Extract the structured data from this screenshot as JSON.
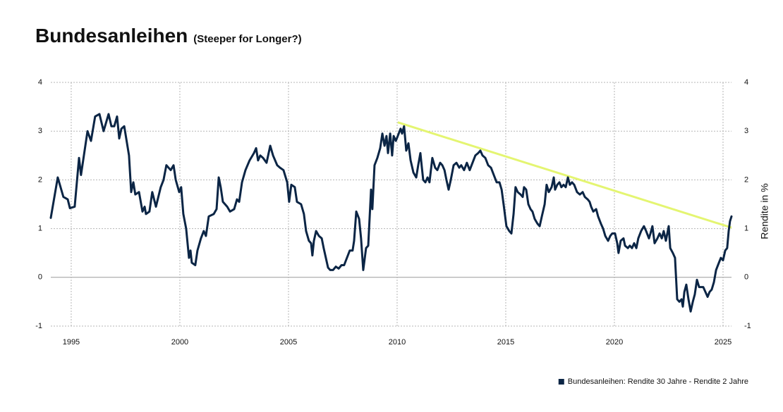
{
  "chart_data": {
    "type": "line",
    "title": "Bundesanleihen",
    "subtitle": "(Steeper for Longer?)",
    "y2label": "Rendite in %",
    "xlim": [
      1994.06,
      2025.39
    ],
    "xticks": [
      1995,
      2000,
      2005,
      2010,
      2015,
      2020,
      2025
    ],
    "ylim": [
      -1,
      4
    ],
    "yticks": [
      -1,
      0,
      1,
      2,
      3,
      4
    ],
    "y2lim": [
      -1,
      4
    ],
    "y2ticks": [
      -1,
      0,
      1,
      2,
      3,
      4
    ],
    "grid": true,
    "zero_line": true,
    "legend": "bottom-right",
    "series": [
      {
        "name": "Bundesanleihen: Rendite 30 Jahre - Rendite 2 Jahre",
        "color": "#0b2545",
        "x": [
          1994.06,
          1994.38,
          1994.64,
          1994.84,
          1994.94,
          1995.16,
          1995.36,
          1995.45,
          1995.55,
          1995.75,
          1995.91,
          1996.1,
          1996.3,
          1996.49,
          1996.72,
          1996.85,
          1996.98,
          1997.11,
          1997.21,
          1997.31,
          1997.44,
          1997.66,
          1997.76,
          1997.86,
          1997.95,
          1998.12,
          1998.28,
          1998.38,
          1998.44,
          1998.6,
          1998.73,
          1998.9,
          1999.12,
          1999.25,
          1999.38,
          1999.58,
          1999.71,
          1999.81,
          1999.97,
          2000.06,
          2000.16,
          2000.29,
          2000.42,
          2000.49,
          2000.55,
          2000.71,
          2000.81,
          2000.97,
          2001.1,
          2001.2,
          2001.33,
          2001.56,
          2001.69,
          2001.79,
          2001.88,
          2001.98,
          2002.18,
          2002.31,
          2002.5,
          2002.63,
          2002.73,
          2002.86,
          2003.02,
          2003.21,
          2003.41,
          2003.51,
          2003.6,
          2003.7,
          2003.83,
          2003.99,
          2004.16,
          2004.29,
          2004.48,
          2004.61,
          2004.77,
          2004.94,
          2005.03,
          2005.13,
          2005.29,
          2005.39,
          2005.58,
          2005.71,
          2005.81,
          2005.94,
          2006.04,
          2006.1,
          2006.17,
          2006.27,
          2006.4,
          2006.53,
          2006.62,
          2006.72,
          2006.82,
          2006.92,
          2007.05,
          2007.18,
          2007.31,
          2007.44,
          2007.56,
          2007.69,
          2007.82,
          2007.95,
          2008.02,
          2008.12,
          2008.25,
          2008.34,
          2008.44,
          2008.57,
          2008.67,
          2008.8,
          2008.86,
          2008.96,
          2009.09,
          2009.22,
          2009.32,
          2009.42,
          2009.51,
          2009.58,
          2009.68,
          2009.77,
          2009.84,
          2009.94,
          2010.03,
          2010.16,
          2010.23,
          2010.32,
          2010.42,
          2010.52,
          2010.62,
          2010.75,
          2010.88,
          2010.97,
          2011.07,
          2011.14,
          2011.2,
          2011.3,
          2011.4,
          2011.49,
          2011.62,
          2011.75,
          2011.85,
          2011.98,
          2012.08,
          2012.18,
          2012.27,
          2012.37,
          2012.47,
          2012.6,
          2012.73,
          2012.86,
          2012.95,
          2013.08,
          2013.21,
          2013.34,
          2013.47,
          2013.6,
          2013.73,
          2013.83,
          2013.93,
          2014.06,
          2014.19,
          2014.32,
          2014.45,
          2014.58,
          2014.71,
          2014.81,
          2014.9,
          2015.03,
          2015.16,
          2015.26,
          2015.36,
          2015.45,
          2015.55,
          2015.68,
          2015.78,
          2015.84,
          2015.94,
          2016.04,
          2016.14,
          2016.23,
          2016.33,
          2016.46,
          2016.56,
          2016.66,
          2016.79,
          2016.88,
          2016.98,
          2017.11,
          2017.21,
          2017.27,
          2017.37,
          2017.47,
          2017.56,
          2017.66,
          2017.76,
          2017.86,
          2017.95,
          2018.05,
          2018.15,
          2018.28,
          2018.41,
          2018.54,
          2018.64,
          2018.77,
          2018.86,
          2018.93,
          2019.03,
          2019.16,
          2019.25,
          2019.38,
          2019.48,
          2019.58,
          2019.71,
          2019.81,
          2019.9,
          2020.03,
          2020.13,
          2020.19,
          2020.29,
          2020.42,
          2020.49,
          2020.62,
          2020.71,
          2020.81,
          2020.91,
          2021.01,
          2021.1,
          2021.23,
          2021.36,
          2021.46,
          2021.59,
          2021.66,
          2021.75,
          2021.85,
          2021.98,
          2022.08,
          2022.18,
          2022.27,
          2022.37,
          2022.5,
          2022.57,
          2022.69,
          2022.79,
          2022.89,
          2022.99,
          2023.09,
          2023.15,
          2023.22,
          2023.31,
          2023.41,
          2023.51,
          2023.61,
          2023.7,
          2023.8,
          2023.9,
          2023.99,
          2024.09,
          2024.19,
          2024.29,
          2024.38,
          2024.48,
          2024.58,
          2024.68,
          2024.81,
          2024.9,
          2025.0,
          2025.1,
          2025.19,
          2025.26,
          2025.32,
          2025.39
        ],
        "values": [
          1.22,
          2.05,
          1.65,
          1.6,
          1.42,
          1.45,
          2.45,
          2.1,
          2.4,
          3.0,
          2.8,
          3.3,
          3.35,
          3.0,
          3.35,
          3.1,
          3.1,
          3.3,
          2.85,
          3.05,
          3.1,
          2.5,
          1.75,
          1.95,
          1.7,
          1.75,
          1.35,
          1.45,
          1.3,
          1.35,
          1.75,
          1.45,
          1.85,
          2.0,
          2.3,
          2.2,
          2.3,
          2.0,
          1.75,
          1.85,
          1.3,
          1.0,
          0.4,
          0.55,
          0.3,
          0.25,
          0.55,
          0.8,
          0.95,
          0.85,
          1.25,
          1.3,
          1.4,
          2.05,
          1.85,
          1.55,
          1.45,
          1.35,
          1.4,
          1.6,
          1.55,
          1.95,
          2.2,
          2.4,
          2.55,
          2.65,
          2.4,
          2.5,
          2.45,
          2.35,
          2.7,
          2.5,
          2.3,
          2.25,
          2.2,
          1.95,
          1.55,
          1.9,
          1.85,
          1.55,
          1.5,
          1.3,
          0.95,
          0.75,
          0.7,
          0.45,
          0.75,
          0.95,
          0.85,
          0.8,
          0.6,
          0.4,
          0.2,
          0.15,
          0.15,
          0.22,
          0.18,
          0.25,
          0.25,
          0.4,
          0.55,
          0.55,
          0.75,
          1.35,
          1.2,
          0.8,
          0.15,
          0.6,
          0.65,
          1.8,
          1.4,
          2.3,
          2.45,
          2.65,
          2.95,
          2.7,
          2.9,
          2.55,
          2.95,
          2.5,
          2.9,
          2.8,
          2.9,
          3.05,
          2.95,
          3.1,
          2.6,
          2.75,
          2.4,
          2.15,
          2.05,
          2.3,
          2.55,
          2.25,
          2.0,
          1.95,
          2.05,
          1.95,
          2.45,
          2.25,
          2.2,
          2.35,
          2.3,
          2.2,
          2.0,
          1.8,
          2.0,
          2.3,
          2.35,
          2.25,
          2.3,
          2.2,
          2.35,
          2.2,
          2.35,
          2.5,
          2.55,
          2.6,
          2.5,
          2.45,
          2.3,
          2.25,
          2.1,
          1.95,
          1.95,
          1.8,
          1.5,
          1.05,
          0.95,
          0.9,
          1.3,
          1.85,
          1.75,
          1.7,
          1.65,
          1.85,
          1.8,
          1.5,
          1.4,
          1.35,
          1.2,
          1.1,
          1.05,
          1.25,
          1.5,
          1.9,
          1.75,
          1.85,
          2.05,
          1.8,
          1.9,
          1.95,
          1.85,
          1.9,
          1.85,
          2.05,
          1.9,
          1.95,
          1.9,
          1.75,
          1.7,
          1.75,
          1.65,
          1.6,
          1.55,
          1.45,
          1.35,
          1.4,
          1.25,
          1.1,
          1.0,
          0.85,
          0.75,
          0.85,
          0.9,
          0.9,
          0.7,
          0.5,
          0.75,
          0.8,
          0.65,
          0.6,
          0.65,
          0.6,
          0.7,
          0.6,
          0.8,
          0.95,
          1.05,
          0.95,
          0.8,
          0.9,
          1.05,
          0.7,
          0.8,
          0.9,
          0.8,
          0.95,
          0.75,
          1.05,
          0.6,
          0.5,
          0.4,
          -0.45,
          -0.5,
          -0.45,
          -0.6,
          -0.3,
          -0.15,
          -0.45,
          -0.7,
          -0.5,
          -0.35,
          -0.05,
          -0.2,
          -0.2,
          -0.2,
          -0.3,
          -0.4,
          -0.3,
          -0.25,
          -0.1,
          0.15,
          0.3,
          0.4,
          0.35,
          0.55,
          0.6,
          0.95,
          1.15,
          1.25
        ]
      }
    ],
    "trendline": {
      "x": [
        2010.03,
        2025.39
      ],
      "values": [
        3.18,
        1.02
      ],
      "color": "#e4f571"
    }
  }
}
